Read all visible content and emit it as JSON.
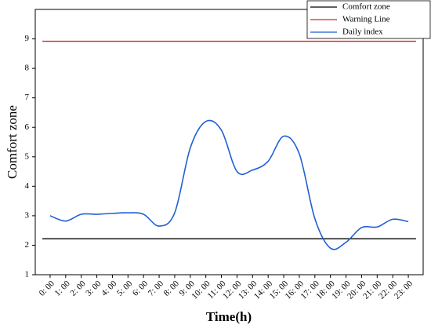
{
  "chart_data": {
    "type": "line",
    "y_label": "Comfort zone",
    "x_label": "Time(h)",
    "categories": [
      "0: 00",
      "1: 00",
      "2: 00",
      "3: 00",
      "4: 00",
      "5: 00",
      "6: 00",
      "7: 00",
      "8: 00",
      "9: 00",
      "10: 00",
      "11: 00",
      "12: 00",
      "13: 00",
      "14: 00",
      "15: 00",
      "16: 00",
      "17: 00",
      "18: 00",
      "19: 00",
      "20: 00",
      "21: 00",
      "22: 00",
      "23: 00"
    ],
    "reference_lines": [
      {
        "name": "Comfort zone",
        "color": "#000000",
        "value": 2.22
      },
      {
        "name": "Warning Line",
        "color": "#e02020",
        "value": 8.92
      }
    ],
    "series": [
      {
        "name": "Daily index",
        "color": "#1f5fd6",
        "values": [
          3.0,
          2.82,
          3.05,
          3.05,
          3.08,
          3.1,
          3.05,
          2.65,
          3.1,
          5.3,
          6.2,
          5.9,
          4.5,
          4.55,
          4.85,
          5.7,
          5.1,
          2.9,
          1.9,
          2.1,
          2.6,
          2.62,
          2.88,
          2.8
        ]
      }
    ],
    "ylim": [
      1,
      10
    ],
    "yticks": [
      1,
      2,
      3,
      4,
      5,
      6,
      7,
      8,
      9
    ],
    "legend": "upper right"
  }
}
